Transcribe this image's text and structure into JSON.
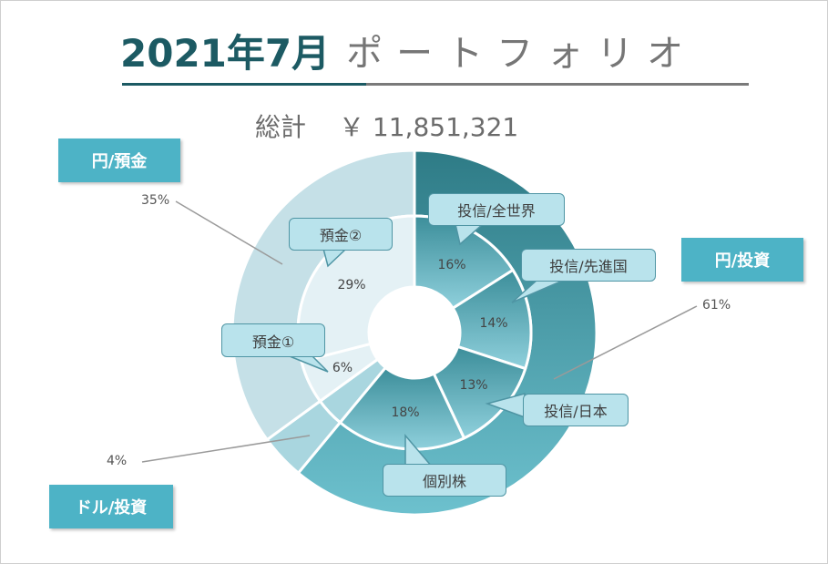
{
  "title": {
    "main": "2021年7月",
    "sub": "ポートフォリオ"
  },
  "total": {
    "label": "総計",
    "value": "￥ 11,851,321"
  },
  "categories": [
    {
      "label": "円/預金",
      "percent": "35%"
    },
    {
      "label": "円/投資",
      "percent": "61%"
    },
    {
      "label": "ドル/投資",
      "percent": "4%"
    }
  ],
  "callouts": {
    "zensekai": "投信/全世界",
    "senshinkoku": "投信/先進国",
    "nihon": "投信/日本",
    "kobetsu": "個別株",
    "yokin2": "預金②",
    "yokin1": "預金①"
  },
  "colors": {
    "title_main": "#1c5a63",
    "category_box": "#4db3c6",
    "outer_yen_investment": "#4e9eab",
    "outer_yen_deposit": "#c5e0e7",
    "outer_dollar_investment": "#a9d6df",
    "inner_investment": "#6fb7c6",
    "inner_deposit": "#e4f1f5",
    "callout_fill": "#b9e3ec"
  },
  "chart_data": {
    "type": "donut",
    "title": "2021年7月 ポートフォリオ",
    "outer_ring": {
      "categories": [
        "円/投資",
        "ドル/投資",
        "円/預金"
      ],
      "values": [
        61,
        4,
        35
      ],
      "labels": [
        "61%",
        "4%",
        "35%"
      ]
    },
    "inner_ring": {
      "categories": [
        "投信/全世界",
        "投信/先進国",
        "投信/日本",
        "個別株",
        "ドル/投資",
        "預金①",
        "預金②"
      ],
      "values": [
        16,
        14,
        13,
        18,
        4,
        6,
        29
      ],
      "labels": [
        "16%",
        "14%",
        "13%",
        "18%",
        "",
        "6%",
        "29%"
      ]
    }
  }
}
